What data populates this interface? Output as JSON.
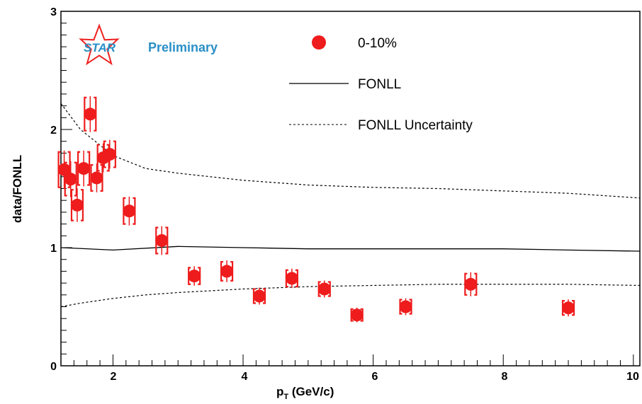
{
  "chart_data": {
    "type": "scatter",
    "title": "",
    "xlabel": "p_T (GeV/c)",
    "ylabel": "data/FONLL",
    "xlim": [
      1.2,
      10.1
    ],
    "ylim": [
      0,
      3
    ],
    "x_ticks": [
      "2",
      "4",
      "6",
      "8",
      "10"
    ],
    "y_ticks": [
      "0",
      "1",
      "2",
      "3"
    ],
    "grid": false,
    "legend_position": "top-right",
    "logo": {
      "name": "STAR",
      "text": "Preliminary",
      "color": "#2a8fc7",
      "star_color": "#ee2222"
    },
    "series": [
      {
        "name": "0-10%",
        "kind": "points",
        "color": "#ee1c1c",
        "points": [
          {
            "x": 1.25,
            "y": 1.66,
            "sys": 0.15
          },
          {
            "x": 1.35,
            "y": 1.58,
            "sys": 0.14
          },
          {
            "x": 1.45,
            "y": 1.36,
            "sys": 0.13
          },
          {
            "x": 1.55,
            "y": 1.67,
            "sys": 0.14
          },
          {
            "x": 1.65,
            "y": 2.13,
            "sys": 0.14
          },
          {
            "x": 1.75,
            "y": 1.59,
            "sys": 0.11
          },
          {
            "x": 1.85,
            "y": 1.76,
            "sys": 0.11
          },
          {
            "x": 1.95,
            "y": 1.79,
            "sys": 0.11
          },
          {
            "x": 2.25,
            "y": 1.31,
            "sys": 0.11
          },
          {
            "x": 2.75,
            "y": 1.06,
            "sys": 0.11
          },
          {
            "x": 3.25,
            "y": 0.76,
            "sys": 0.07
          },
          {
            "x": 3.75,
            "y": 0.8,
            "sys": 0.08
          },
          {
            "x": 4.25,
            "y": 0.59,
            "sys": 0.06
          },
          {
            "x": 4.75,
            "y": 0.74,
            "sys": 0.07
          },
          {
            "x": 5.25,
            "y": 0.65,
            "sys": 0.06
          },
          {
            "x": 5.75,
            "y": 0.43,
            "sys": 0.05
          },
          {
            "x": 6.5,
            "y": 0.5,
            "sys": 0.06
          },
          {
            "x": 7.5,
            "y": 0.69,
            "sys": 0.09
          },
          {
            "x": 9.0,
            "y": 0.49,
            "sys": 0.06
          }
        ]
      },
      {
        "name": "FONLL",
        "kind": "line",
        "color": "#000000",
        "x": [
          1.2,
          2.0,
          3.0,
          4.0,
          5.0,
          6.0,
          7.0,
          8.0,
          9.0,
          10.1
        ],
        "y": [
          1.0,
          0.98,
          1.01,
          1.0,
          0.99,
          0.99,
          0.99,
          0.99,
          0.98,
          0.97
        ]
      },
      {
        "name": "FONLL Uncertainty",
        "kind": "dashed",
        "color": "#000000",
        "bands": [
          {
            "x": [
              1.2,
              1.5,
              2.0,
              2.5,
              3.0,
              4.0,
              5.0,
              6.0,
              7.0,
              8.0,
              9.0,
              10.1
            ],
            "y": [
              2.22,
              2.0,
              1.78,
              1.67,
              1.63,
              1.57,
              1.53,
              1.51,
              1.5,
              1.48,
              1.46,
              1.42
            ]
          },
          {
            "x": [
              1.2,
              1.5,
              2.0,
              2.5,
              3.0,
              4.0,
              5.0,
              6.0,
              7.0,
              8.0,
              9.0,
              10.1
            ],
            "y": [
              0.5,
              0.53,
              0.57,
              0.6,
              0.62,
              0.65,
              0.67,
              0.68,
              0.69,
              0.69,
              0.69,
              0.68
            ]
          }
        ]
      }
    ]
  }
}
